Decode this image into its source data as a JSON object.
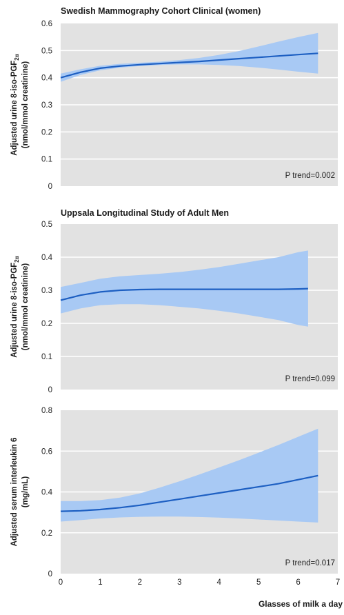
{
  "chart_data": [
    {
      "type": "line",
      "title": "Swedish Mammography Cohort Clinical (women)",
      "ylabel": {
        "lines": [
          [
            "Adjusted urine 8-iso-PGF",
            "2α"
          ],
          [
            "(nmol/mmol creatinine)"
          ]
        ]
      },
      "xlim": [
        0,
        7
      ],
      "ylim": [
        0,
        0.6
      ],
      "xticks": [
        0,
        1,
        2,
        3,
        4,
        5,
        6,
        7
      ],
      "yticks": [
        0,
        0.1,
        0.2,
        0.3,
        0.4,
        0.5,
        0.6
      ],
      "ytick_labels": [
        "0",
        "0.1",
        "0.2",
        "0.3",
        "0.4",
        "0.5",
        "0.6"
      ],
      "grid": true,
      "annotation": "P trend=0.002",
      "series": [
        {
          "x": [
            0,
            0.5,
            1,
            1.5,
            2,
            2.5,
            3,
            3.5,
            4,
            4.5,
            5,
            5.5,
            6,
            6.5
          ],
          "y": [
            0.4,
            0.42,
            0.435,
            0.443,
            0.448,
            0.452,
            0.456,
            0.46,
            0.465,
            0.47,
            0.475,
            0.48,
            0.485,
            0.49
          ],
          "lower": [
            0.385,
            0.41,
            0.427,
            0.437,
            0.443,
            0.447,
            0.449,
            0.449,
            0.447,
            0.443,
            0.437,
            0.43,
            0.422,
            0.415
          ],
          "upper": [
            0.415,
            0.431,
            0.444,
            0.451,
            0.455,
            0.459,
            0.465,
            0.473,
            0.484,
            0.498,
            0.515,
            0.533,
            0.55,
            0.565
          ]
        }
      ]
    },
    {
      "type": "line",
      "title": "Uppsala Longitudinal Study of Adult Men",
      "ylabel": {
        "lines": [
          [
            "Adjusted urine 8-iso-PGF",
            "2α"
          ],
          [
            "(nmol/mmol creatinine)"
          ]
        ]
      },
      "xlim": [
        0,
        7
      ],
      "ylim": [
        0,
        0.5
      ],
      "xticks": [
        0,
        1,
        2,
        3,
        4,
        5,
        6,
        7
      ],
      "yticks": [
        0,
        0.1,
        0.2,
        0.3,
        0.4,
        0.5
      ],
      "ytick_labels": [
        "0",
        "0.1",
        "0.2",
        "0.3",
        "0.4",
        "0.5"
      ],
      "grid": true,
      "annotation": "P trend=0.099",
      "series": [
        {
          "x": [
            0,
            0.5,
            1,
            1.5,
            2,
            2.5,
            3,
            3.5,
            4,
            4.5,
            5,
            5.5,
            6,
            6.25
          ],
          "y": [
            0.27,
            0.285,
            0.295,
            0.3,
            0.302,
            0.303,
            0.303,
            0.303,
            0.303,
            0.303,
            0.303,
            0.303,
            0.304,
            0.305
          ],
          "lower": [
            0.23,
            0.245,
            0.255,
            0.258,
            0.258,
            0.255,
            0.25,
            0.245,
            0.238,
            0.23,
            0.22,
            0.21,
            0.195,
            0.19
          ],
          "upper": [
            0.31,
            0.322,
            0.335,
            0.342,
            0.346,
            0.35,
            0.355,
            0.362,
            0.37,
            0.38,
            0.39,
            0.4,
            0.415,
            0.42
          ]
        }
      ]
    },
    {
      "type": "line",
      "title": "",
      "ylabel": {
        "lines": [
          [
            "Adjusted serum interleukin 6"
          ],
          [
            "(mg/mL)"
          ]
        ]
      },
      "xlabel": "Glasses of milk a day",
      "xlim": [
        0,
        7
      ],
      "ylim": [
        0,
        0.8
      ],
      "xticks": [
        0,
        1,
        2,
        3,
        4,
        5,
        6,
        7
      ],
      "xtick_labels": [
        "0",
        "1",
        "2",
        "3",
        "4",
        "5",
        "6",
        "7"
      ],
      "yticks": [
        0,
        0.2,
        0.4,
        0.6,
        0.8
      ],
      "ytick_labels": [
        "0",
        "0.2",
        "0.4",
        "0.6",
        "0.8"
      ],
      "grid": true,
      "annotation": "P trend=0.017",
      "series": [
        {
          "x": [
            0,
            0.5,
            1,
            1.5,
            2,
            2.5,
            3,
            3.5,
            4,
            4.5,
            5,
            5.5,
            6,
            6.5
          ],
          "y": [
            0.305,
            0.308,
            0.314,
            0.323,
            0.335,
            0.35,
            0.365,
            0.38,
            0.395,
            0.41,
            0.425,
            0.44,
            0.46,
            0.48
          ],
          "lower": [
            0.255,
            0.262,
            0.27,
            0.275,
            0.278,
            0.279,
            0.279,
            0.277,
            0.274,
            0.27,
            0.265,
            0.26,
            0.255,
            0.25
          ],
          "upper": [
            0.355,
            0.355,
            0.36,
            0.372,
            0.393,
            0.421,
            0.452,
            0.485,
            0.52,
            0.555,
            0.592,
            0.63,
            0.67,
            0.71
          ]
        }
      ]
    }
  ],
  "colors": {
    "panel_background": "#e2e2e2",
    "grid": "#ffffff",
    "line": "#1d5fc2",
    "band": "#a8c9f4"
  }
}
